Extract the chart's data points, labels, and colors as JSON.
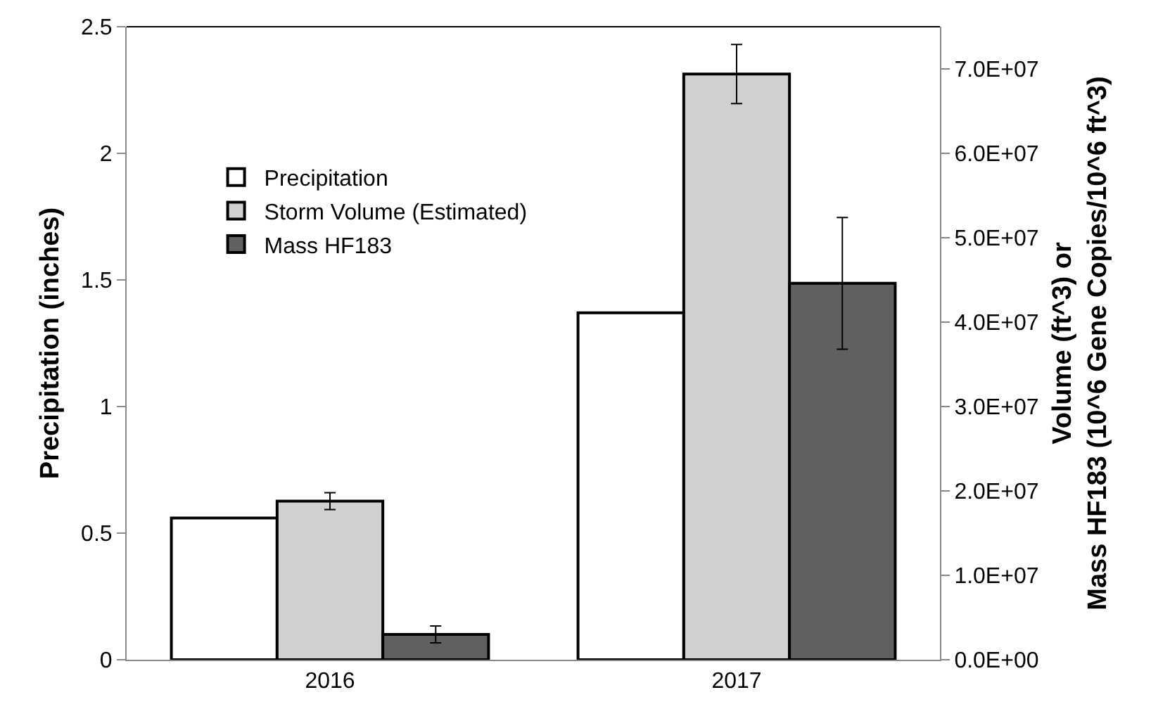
{
  "chart_data": {
    "type": "bar",
    "ylabel": "Precipitation (inches)",
    "y2label": "Volume (ft^3) or\nMass HF183 (10^6 Gene Copies/10^6 ft^3)",
    "categories": [
      "2016",
      "2017"
    ],
    "series": [
      {
        "name": "Precipitation",
        "color": "#ffffff",
        "values": [
          0.56,
          1.37
        ]
      },
      {
        "name": "Storm Volume (Estimated)",
        "color": "#d0d0d0",
        "axis": "y2",
        "values": [
          18800000,
          69400000
        ],
        "errors": [
          1000000,
          3500000
        ]
      },
      {
        "name": "Mass HF183",
        "color": "#606060",
        "axis": "y2",
        "values": [
          3000000,
          44600000
        ],
        "errors": [
          1000000,
          7800000
        ]
      }
    ],
    "ylim": [
      0,
      2.5
    ],
    "yticks": [
      0,
      0.5,
      1,
      1.5,
      2,
      2.5
    ],
    "y2lim": [
      0,
      75000000
    ],
    "y2ticks": [
      {
        "value": 0,
        "label": "0.0E+00"
      },
      {
        "value": 10000000,
        "label": "1.0E+07"
      },
      {
        "value": 20000000,
        "label": "2.0E+07"
      },
      {
        "value": 30000000,
        "label": "3.0E+07"
      },
      {
        "value": 40000000,
        "label": "4.0E+07"
      },
      {
        "value": 50000000,
        "label": "5.0E+07"
      },
      {
        "value": 60000000,
        "label": "6.0E+07"
      },
      {
        "value": 70000000,
        "label": "7.0E+07"
      }
    ],
    "legend": "top left"
  }
}
